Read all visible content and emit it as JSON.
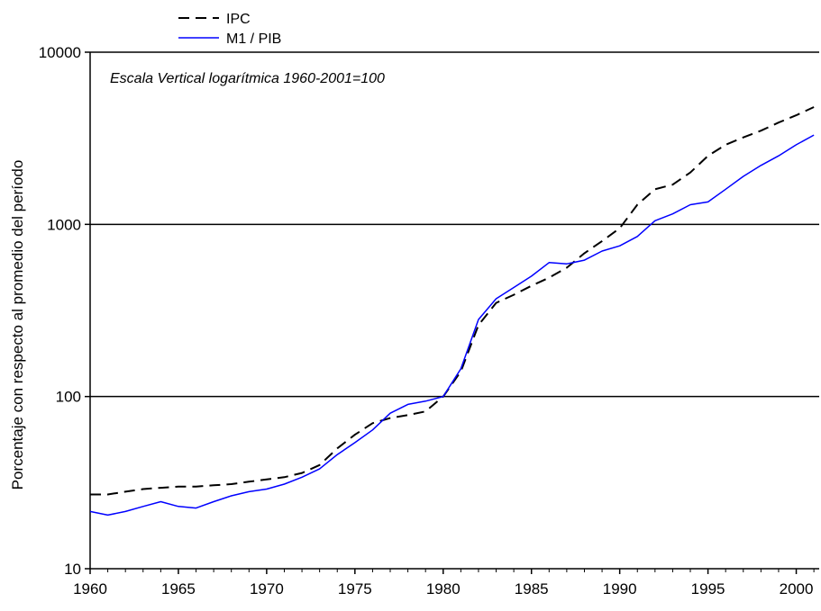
{
  "chart_data": {
    "type": "line",
    "ylabel": "Porcentaje con respecto al promedio del período",
    "annotation": "Escala Vertical logarítmica 1960-2001=100",
    "yscale": "log",
    "ylim": [
      10,
      10000
    ],
    "xlim": [
      1960,
      2001.3
    ],
    "x_ticks": [
      1960,
      1965,
      1970,
      1975,
      1980,
      1985,
      1990,
      1995,
      2000
    ],
    "x_tick_labels": [
      "1960",
      "1965",
      "1970",
      "1975",
      "1980",
      "1985",
      "1990",
      "1995",
      "2000"
    ],
    "y_ticks": [
      10,
      100,
      1000,
      10000
    ],
    "y_tick_labels": [
      "10",
      "100",
      "1000",
      "10000"
    ],
    "gridlines_y": [
      100,
      1000,
      10000
    ],
    "legend_position": "top-left",
    "series": [
      {
        "name": "IPC",
        "color": "#000000",
        "style": "dashed",
        "x": [
          1960,
          1961,
          1962,
          1963,
          1964,
          1965,
          1966,
          1967,
          1968,
          1969,
          1970,
          1971,
          1972,
          1973,
          1974,
          1975,
          1976,
          1977,
          1978,
          1979,
          1980,
          1981,
          1982,
          1983,
          1984,
          1985,
          1986,
          1987,
          1988,
          1989,
          1990,
          1991,
          1992,
          1993,
          1994,
          1995,
          1996,
          1997,
          1998,
          1999,
          2000,
          2001
        ],
        "values": [
          27,
          27,
          28,
          29,
          29.5,
          30,
          30,
          30.5,
          31,
          32,
          33,
          34,
          36,
          40,
          50,
          60,
          70,
          75,
          78,
          82,
          100,
          140,
          260,
          350,
          390,
          440,
          490,
          560,
          680,
          800,
          950,
          1300,
          1600,
          1700,
          2000,
          2500,
          2900,
          3200,
          3500,
          3900,
          4300,
          4800
        ]
      },
      {
        "name": "M1 / PIB",
        "color": "#0000ff",
        "style": "solid",
        "x": [
          1960,
          1961,
          1962,
          1963,
          1964,
          1965,
          1966,
          1967,
          1968,
          1969,
          1970,
          1971,
          1972,
          1973,
          1974,
          1975,
          1976,
          1977,
          1978,
          1979,
          1980,
          1981,
          1982,
          1983,
          1984,
          1985,
          1986,
          1987,
          1988,
          1989,
          1990,
          1991,
          1992,
          1993,
          1994,
          1995,
          1996,
          1997,
          1998,
          1999,
          2000,
          2001
        ],
        "values": [
          21.5,
          20.5,
          21.5,
          23,
          24.5,
          23,
          22.5,
          24.5,
          26.5,
          28,
          29,
          31,
          34,
          38,
          46,
          54,
          64,
          80,
          90,
          94,
          100,
          145,
          280,
          370,
          430,
          500,
          600,
          590,
          620,
          700,
          750,
          850,
          1050,
          1150,
          1300,
          1350,
          1600,
          1900,
          2200,
          2500,
          2900,
          3300
        ]
      }
    ]
  }
}
